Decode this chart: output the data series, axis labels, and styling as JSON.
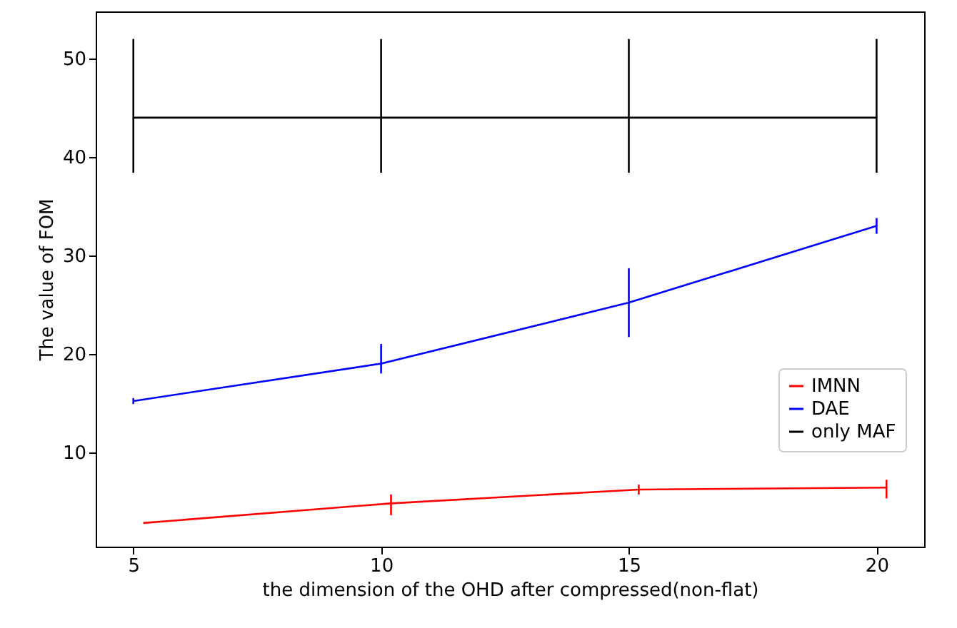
{
  "chart_data": {
    "type": "line",
    "xlabel": "the dimension of the OHD after compressed(non-flat)",
    "ylabel": "The value of FOM",
    "xlim": [
      4.24,
      20.96
    ],
    "xticks": [
      5,
      10,
      15,
      20
    ],
    "ylim": [
      0.4,
      54.8
    ],
    "yticks": [
      10,
      20,
      30,
      40,
      50
    ],
    "grid": false,
    "legend": "bottom right",
    "marker": "none",
    "line_style": "solid",
    "series": [
      {
        "name": "IMNN",
        "color": "#ff0000",
        "x": [
          5.2,
          10.2,
          15.2,
          20.2
        ],
        "values": [
          2.8,
          4.8,
          6.2,
          6.4
        ],
        "errors": [
          null,
          [
            3.6,
            5.7
          ],
          [
            5.7,
            6.7
          ],
          [
            5.3,
            7.2
          ]
        ]
      },
      {
        "name": "DAE",
        "color": "#0000ff",
        "x": [
          5,
          10,
          15,
          20
        ],
        "values": [
          15.2,
          19.0,
          25.2,
          33.0
        ],
        "errors": [
          [
            14.9,
            15.5
          ],
          [
            18.0,
            21.0
          ],
          [
            21.7,
            28.7
          ],
          [
            32.2,
            33.8
          ]
        ]
      },
      {
        "name": "only MAF",
        "color": "#000000",
        "x": [
          5,
          10,
          15,
          20
        ],
        "values": [
          44,
          44,
          44,
          44
        ],
        "errors": [
          [
            38.4,
            52
          ],
          [
            38.4,
            52
          ],
          [
            38.4,
            52
          ],
          [
            38.4,
            52
          ]
        ]
      }
    ]
  }
}
